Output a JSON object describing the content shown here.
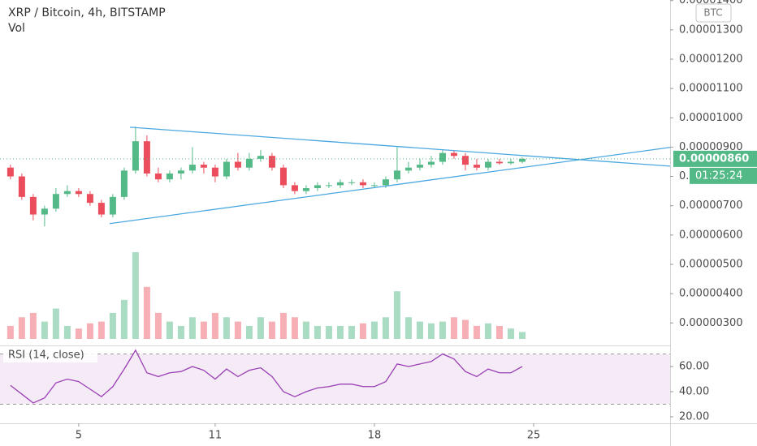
{
  "chart_data": {
    "type": "candlestick",
    "title": "XRP / Bitcoin, 4h, BITSTAMP",
    "volume_label": "Vol",
    "currency": "BTC",
    "x": [
      2.0,
      2.5,
      3.0,
      3.5,
      4.0,
      4.5,
      5.0,
      5.5,
      6.0,
      6.5,
      7.0,
      7.5,
      8.0,
      8.5,
      9.0,
      9.5,
      10.0,
      10.5,
      11.0,
      11.5,
      12.0,
      12.5,
      13.0,
      13.5,
      14.0,
      14.5,
      15.0,
      15.5,
      16.0,
      16.5,
      17.0,
      17.5,
      18.0,
      18.5,
      19.0,
      19.5,
      20.0,
      20.5,
      21.0,
      21.5,
      22.0,
      22.5,
      23.0,
      23.5,
      24.0,
      24.5
    ],
    "open": [
      8.3e-06,
      8e-06,
      7.3e-06,
      6.7e-06,
      6.9e-06,
      7.4e-06,
      7.5e-06,
      7.4e-06,
      7.1e-06,
      6.7e-06,
      7.3e-06,
      8.2e-06,
      9.2e-06,
      8.1e-06,
      7.9e-06,
      8.1e-06,
      8.2e-06,
      8.4e-06,
      8.3e-06,
      8e-06,
      8.5e-06,
      8.3e-06,
      8.6e-06,
      8.7e-06,
      8.3e-06,
      7.7e-06,
      7.5e-06,
      7.6e-06,
      7.7e-06,
      7.7e-06,
      7.8e-06,
      7.8e-06,
      7.7e-06,
      7.7e-06,
      7.9e-06,
      8.2e-06,
      8.3e-06,
      8.4e-06,
      8.5e-06,
      8.8e-06,
      8.7e-06,
      8.4e-06,
      8.3e-06,
      8.5e-06,
      8.45e-06,
      8.5e-06
    ],
    "high": [
      8.4e-06,
      8.1e-06,
      7.4e-06,
      7e-06,
      7.6e-06,
      7.7e-06,
      7.6e-06,
      7.5e-06,
      7.2e-06,
      7.4e-06,
      8.3e-06,
      9.7e-06,
      9.4e-06,
      8.3e-06,
      8.2e-06,
      8.3e-06,
      9e-06,
      8.5e-06,
      8.4e-06,
      8.6e-06,
      8.8e-06,
      8.8e-06,
      8.9e-06,
      8.8e-06,
      8.4e-06,
      7.8e-06,
      7.7e-06,
      7.8e-06,
      7.8e-06,
      7.9e-06,
      7.9e-06,
      7.9e-06,
      7.8e-06,
      8e-06,
      9e-06,
      8.5e-06,
      8.6e-06,
      8.7e-06,
      8.9e-06,
      8.9e-06,
      8.8e-06,
      8.6e-06,
      8.6e-06,
      8.6e-06,
      8.6e-06,
      8.65e-06
    ],
    "low": [
      7.9e-06,
      7.2e-06,
      6.5e-06,
      6.3e-06,
      6.8e-06,
      7.3e-06,
      7.3e-06,
      7e-06,
      6.6e-06,
      6.6e-06,
      7.2e-06,
      8.1e-06,
      8e-06,
      7.8e-06,
      7.8e-06,
      7.9e-06,
      8.1e-06,
      8.1e-06,
      7.8e-06,
      7.9e-06,
      8.2e-06,
      8.2e-06,
      8.5e-06,
      8.2e-06,
      7.6e-06,
      7.4e-06,
      7.4e-06,
      7.5e-06,
      7.6e-06,
      7.6e-06,
      7.7e-06,
      7.6e-06,
      7.6e-06,
      7.6e-06,
      7.8e-06,
      8.1e-06,
      8.2e-06,
      8.3e-06,
      8.4e-06,
      8.6e-06,
      8.2e-06,
      8.2e-06,
      8.2e-06,
      8.4e-06,
      8.4e-06,
      8.45e-06
    ],
    "close": [
      8e-06,
      7.3e-06,
      6.7e-06,
      6.9e-06,
      7.4e-06,
      7.5e-06,
      7.4e-06,
      7.1e-06,
      6.7e-06,
      7.3e-06,
      8.2e-06,
      9.2e-06,
      8.1e-06,
      7.9e-06,
      8.1e-06,
      8.2e-06,
      8.4e-06,
      8.3e-06,
      8e-06,
      8.5e-06,
      8.3e-06,
      8.6e-06,
      8.7e-06,
      8.3e-06,
      7.7e-06,
      7.5e-06,
      7.6e-06,
      7.7e-06,
      7.7e-06,
      7.8e-06,
      7.8e-06,
      7.7e-06,
      7.7e-06,
      7.9e-06,
      8.2e-06,
      8.3e-06,
      8.4e-06,
      8.5e-06,
      8.8e-06,
      8.7e-06,
      8.4e-06,
      8.3e-06,
      8.5e-06,
      8.45e-06,
      8.5e-06,
      8.6e-06
    ],
    "volume": [
      15,
      25,
      30,
      20,
      35,
      15,
      12,
      18,
      20,
      30,
      45,
      100,
      60,
      30,
      20,
      15,
      25,
      20,
      30,
      25,
      20,
      15,
      25,
      20,
      30,
      25,
      20,
      15,
      15,
      15,
      15,
      18,
      20,
      25,
      55,
      25,
      20,
      18,
      20,
      25,
      22,
      15,
      18,
      15,
      12,
      8
    ],
    "up_color": "#53b987",
    "down_color": "#eb4d5c",
    "xlim": [
      1.54,
      31.0
    ],
    "xticks": [
      5,
      11,
      18,
      25
    ],
    "ylim": [
      2.26e-06,
      1.402e-05
    ],
    "yticks": [
      {
        "value": 3e-06,
        "label": "0.00000300"
      },
      {
        "value": 4e-06,
        "label": "0.00000400"
      },
      {
        "value": 5e-06,
        "label": "0.00000500"
      },
      {
        "value": 6e-06,
        "label": "0.00000600"
      },
      {
        "value": 7e-06,
        "label": "0.00000700"
      },
      {
        "value": 8e-06,
        "label": "0.00000800"
      },
      {
        "value": 9e-06,
        "label": "0.00000900"
      },
      {
        "value": 1e-05,
        "label": "0.00001000"
      },
      {
        "value": 1.1e-05,
        "label": "0.00001100"
      },
      {
        "value": 1.2e-05,
        "label": "0.00001200"
      },
      {
        "value": 1.3e-05,
        "label": "0.00001300"
      },
      {
        "value": 1.4e-05,
        "label": "0.00001400"
      }
    ],
    "last_price": {
      "value": 8.6e-06,
      "label": "0.00000860"
    },
    "countdown": "01:25:24",
    "trendlines": [
      {
        "x": [
          7.25,
          31.0
        ],
        "y": [
          9.68e-06,
          8.35e-06
        ],
        "color": "#4aa8e0"
      },
      {
        "x": [
          6.36,
          31.0
        ],
        "y": [
          6.39e-06,
          8.99e-06
        ],
        "color": "#4aa8e0"
      }
    ],
    "rsi": {
      "title": "RSI (14, close)",
      "color": "#9b3fb5",
      "values": [
        45,
        38,
        31,
        35,
        47,
        50,
        48,
        42,
        36,
        44,
        58,
        73,
        55,
        52,
        55,
        56,
        60,
        57,
        50,
        58,
        52,
        57,
        59,
        52,
        40,
        36,
        40,
        43,
        44,
        46,
        46,
        44,
        44,
        48,
        62,
        60,
        62,
        64,
        70,
        66,
        56,
        52,
        58,
        55,
        55,
        60
      ],
      "ylim": [
        14.8,
        75.5
      ],
      "yticks": [
        {
          "value": 20,
          "label": "20.00"
        },
        {
          "value": 40,
          "label": "40.00"
        },
        {
          "value": 60,
          "label": "60.00"
        }
      ],
      "bands": [
        30,
        70
      ]
    }
  }
}
